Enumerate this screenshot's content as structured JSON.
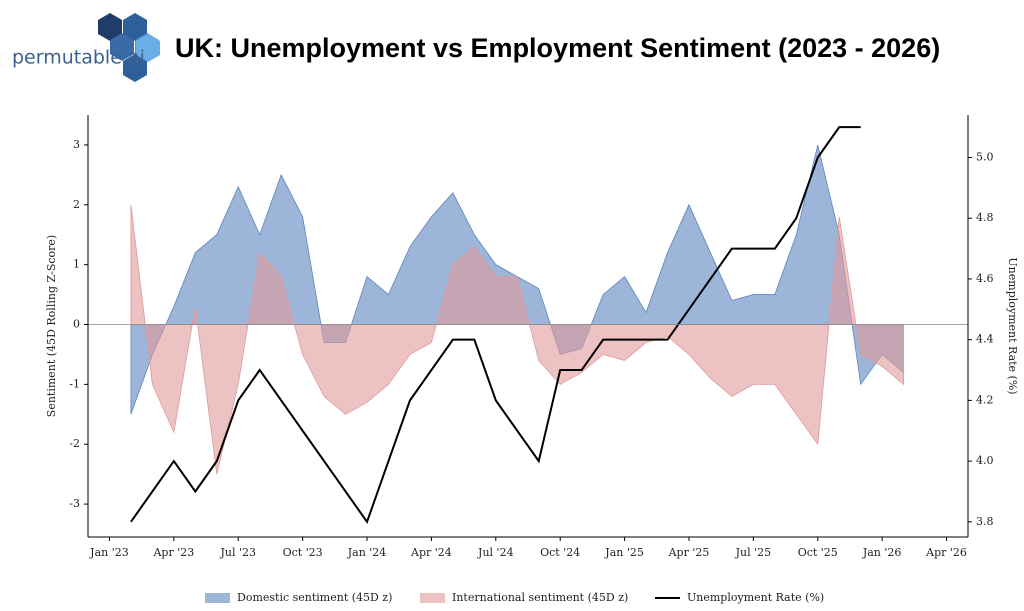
{
  "logo_text": "permutable.ai",
  "chart_data": {
    "type": "area",
    "title": "UK: Unemployment vs Employment Sentiment (2023 - 2026)",
    "y_label": "Sentiment (45D Rolling Z-Score)",
    "y2_label": "Unemployment Rate (%)",
    "x": [
      "2023-02",
      "2023-03",
      "2023-04",
      "2023-05",
      "2023-06",
      "2023-07",
      "2023-08",
      "2023-09",
      "2023-10",
      "2023-11",
      "2023-12",
      "2024-01",
      "2024-02",
      "2024-03",
      "2024-04",
      "2024-05",
      "2024-06",
      "2024-07",
      "2024-08",
      "2024-09",
      "2024-10",
      "2024-11",
      "2024-12",
      "2025-01",
      "2025-02",
      "2025-03",
      "2025-04",
      "2025-05",
      "2025-06",
      "2025-07",
      "2025-08",
      "2025-09",
      "2025-10",
      "2025-11",
      "2025-12",
      "2026-01",
      "2026-02"
    ],
    "xlim": [
      "2022-12",
      "2026-05"
    ],
    "xticks": [
      {
        "value": "2023-01",
        "label": "Jan '23"
      },
      {
        "value": "2023-04",
        "label": "Apr '23"
      },
      {
        "value": "2023-07",
        "label": "Jul '23"
      },
      {
        "value": "2023-10",
        "label": "Oct '23"
      },
      {
        "value": "2024-01",
        "label": "Jan '24"
      },
      {
        "value": "2024-04",
        "label": "Apr '24"
      },
      {
        "value": "2024-07",
        "label": "Jul '24"
      },
      {
        "value": "2024-10",
        "label": "Oct '24"
      },
      {
        "value": "2025-01",
        "label": "Jan '25"
      },
      {
        "value": "2025-04",
        "label": "Apr '25"
      },
      {
        "value": "2025-07",
        "label": "Jul '25"
      },
      {
        "value": "2025-10",
        "label": "Oct '25"
      },
      {
        "value": "2026-01",
        "label": "Jan '26"
      },
      {
        "value": "2026-04",
        "label": "Apr '26"
      }
    ],
    "ylim": [
      -3.55,
      3.5
    ],
    "yticks": [
      -3,
      -2,
      -1,
      0,
      1,
      2,
      3
    ],
    "y2lim": [
      3.75,
      5.14
    ],
    "y2ticks": [
      3.8,
      {
        "value": 4,
        "label": "4.0"
      },
      4.2,
      4.4,
      4.6,
      4.8,
      {
        "value": 5,
        "label": "5.0"
      }
    ],
    "legend": "bottom",
    "series": [
      {
        "name": "Domestic sentiment (45D z)",
        "color": "#5b84c0",
        "values": [
          -1.5,
          -0.5,
          0.3,
          1.2,
          1.5,
          2.3,
          1.5,
          2.5,
          1.8,
          -0.3,
          -0.3,
          0.8,
          0.5,
          1.3,
          1.8,
          2.2,
          1.5,
          1.0,
          0.8,
          0.6,
          -0.5,
          -0.4,
          0.5,
          0.8,
          0.2,
          1.2,
          2.0,
          1.2,
          0.4,
          0.5,
          0.5,
          1.5,
          3.0,
          1.5,
          -1.0,
          -0.5,
          -0.8
        ]
      },
      {
        "name": "International sentiment (45D z)",
        "color": "#e09a9a",
        "values": [
          2.0,
          -1.0,
          -1.8,
          0.3,
          -2.5,
          -1.0,
          1.2,
          0.8,
          -0.5,
          -1.2,
          -1.5,
          -1.3,
          -1.0,
          -0.5,
          -0.3,
          1.0,
          1.3,
          0.8,
          0.8,
          -0.6,
          -1.0,
          -0.8,
          -0.5,
          -0.6,
          -0.3,
          -0.2,
          -0.5,
          -0.9,
          -1.2,
          -1.0,
          -1.0,
          -1.5,
          -2.0,
          1.8,
          -0.5,
          -0.7,
          -1.0
        ]
      },
      {
        "name": "Unemployment Rate (%)",
        "color": "#000000",
        "type": "line",
        "axis": "y2",
        "x": [
          "2023-02",
          "2023-03",
          "2023-04",
          "2023-05",
          "2023-06",
          "2023-07",
          "2023-08",
          "2024-01",
          "2024-03",
          "2024-05",
          "2024-06",
          "2024-07",
          "2024-09",
          "2024-10",
          "2024-11",
          "2024-12",
          "2025-03",
          "2025-04",
          "2025-06",
          "2025-08",
          "2025-09",
          "2025-10",
          "2025-11",
          "2025-12"
        ],
        "values": [
          3.8,
          3.9,
          4.0,
          3.9,
          4.0,
          4.2,
          4.3,
          3.8,
          4.2,
          4.4,
          4.4,
          4.2,
          4.0,
          4.3,
          4.3,
          4.4,
          4.4,
          4.5,
          4.7,
          4.7,
          4.8,
          5.0,
          5.1,
          5.1
        ]
      }
    ]
  }
}
